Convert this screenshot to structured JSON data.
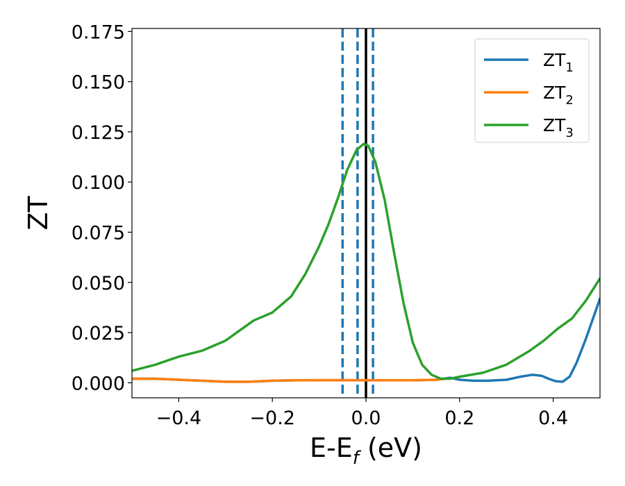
{
  "chart_data": {
    "type": "line",
    "xlabel": {
      "main": "E-E",
      "sub": "f",
      "tail": " (eV)"
    },
    "ylabel": "ZT",
    "xlim": [
      -0.5,
      0.5
    ],
    "ylim": [
      -0.0075,
      0.1765
    ],
    "xticks": [
      -0.4,
      -0.2,
      0.0,
      0.2,
      0.4
    ],
    "xtick_labels": [
      "−0.4",
      "−0.2",
      "0.0",
      "0.2",
      "0.4"
    ],
    "yticks": [
      0.0,
      0.025,
      0.05,
      0.075,
      0.1,
      0.125,
      0.15,
      0.175
    ],
    "ytick_labels": [
      "0.000",
      "0.025",
      "0.050",
      "0.075",
      "0.100",
      "0.125",
      "0.150",
      "0.175"
    ],
    "grid": false,
    "legend_position": "top-right",
    "vlines": [
      {
        "x": -0.05,
        "style": "dashed",
        "color": "#1f77b4"
      },
      {
        "x": -0.018,
        "style": "dashed",
        "color": "#1f77b4"
      },
      {
        "x": 0.015,
        "style": "dashed",
        "color": "#1f77b4"
      },
      {
        "x": 0.0,
        "style": "solid",
        "color": "#000000"
      }
    ],
    "series": [
      {
        "name": "ZT",
        "sub": "1",
        "color": "#1f77b4",
        "x": [
          -0.5,
          -0.45,
          -0.4,
          -0.35,
          -0.3,
          -0.25,
          -0.2,
          -0.15,
          -0.1,
          -0.05,
          0.0,
          0.05,
          0.1,
          0.15,
          0.18,
          0.2,
          0.23,
          0.26,
          0.3,
          0.33,
          0.355,
          0.375,
          0.39,
          0.405,
          0.42,
          0.435,
          0.45,
          0.47,
          0.5
        ],
        "y": [
          0.002,
          0.002,
          0.0015,
          0.001,
          0.0005,
          0.0005,
          0.001,
          0.0012,
          0.0013,
          0.0013,
          0.0013,
          0.0012,
          0.0012,
          0.0015,
          0.0025,
          0.0015,
          0.001,
          0.001,
          0.0015,
          0.003,
          0.004,
          0.0035,
          0.002,
          0.0008,
          0.0005,
          0.003,
          0.01,
          0.022,
          0.042
        ]
      },
      {
        "name": "ZT",
        "sub": "2",
        "color": "#ff7f0e",
        "x": [
          -0.5,
          -0.45,
          -0.4,
          -0.35,
          -0.3,
          -0.25,
          -0.2,
          -0.15,
          -0.1,
          -0.05,
          0.0,
          0.05,
          0.1,
          0.15,
          0.17
        ],
        "y": [
          0.002,
          0.002,
          0.0015,
          0.001,
          0.0005,
          0.0005,
          0.001,
          0.0012,
          0.0013,
          0.0013,
          0.0013,
          0.0012,
          0.0012,
          0.0015,
          0.002
        ]
      },
      {
        "name": "ZT",
        "sub": "3",
        "color": "#2ca02c",
        "x": [
          -0.5,
          -0.45,
          -0.4,
          -0.35,
          -0.3,
          -0.27,
          -0.24,
          -0.2,
          -0.16,
          -0.13,
          -0.1,
          -0.08,
          -0.06,
          -0.04,
          -0.02,
          -0.005,
          0.005,
          0.02,
          0.04,
          0.06,
          0.08,
          0.1,
          0.12,
          0.14,
          0.16,
          0.18,
          0.2,
          0.25,
          0.3,
          0.35,
          0.38,
          0.41,
          0.44,
          0.47,
          0.5
        ],
        "y": [
          0.006,
          0.009,
          0.013,
          0.016,
          0.021,
          0.026,
          0.031,
          0.035,
          0.043,
          0.054,
          0.068,
          0.079,
          0.092,
          0.106,
          0.116,
          0.119,
          0.118,
          0.11,
          0.091,
          0.065,
          0.04,
          0.02,
          0.009,
          0.004,
          0.002,
          0.002,
          0.003,
          0.005,
          0.009,
          0.016,
          0.021,
          0.027,
          0.032,
          0.041,
          0.052
        ]
      }
    ]
  }
}
